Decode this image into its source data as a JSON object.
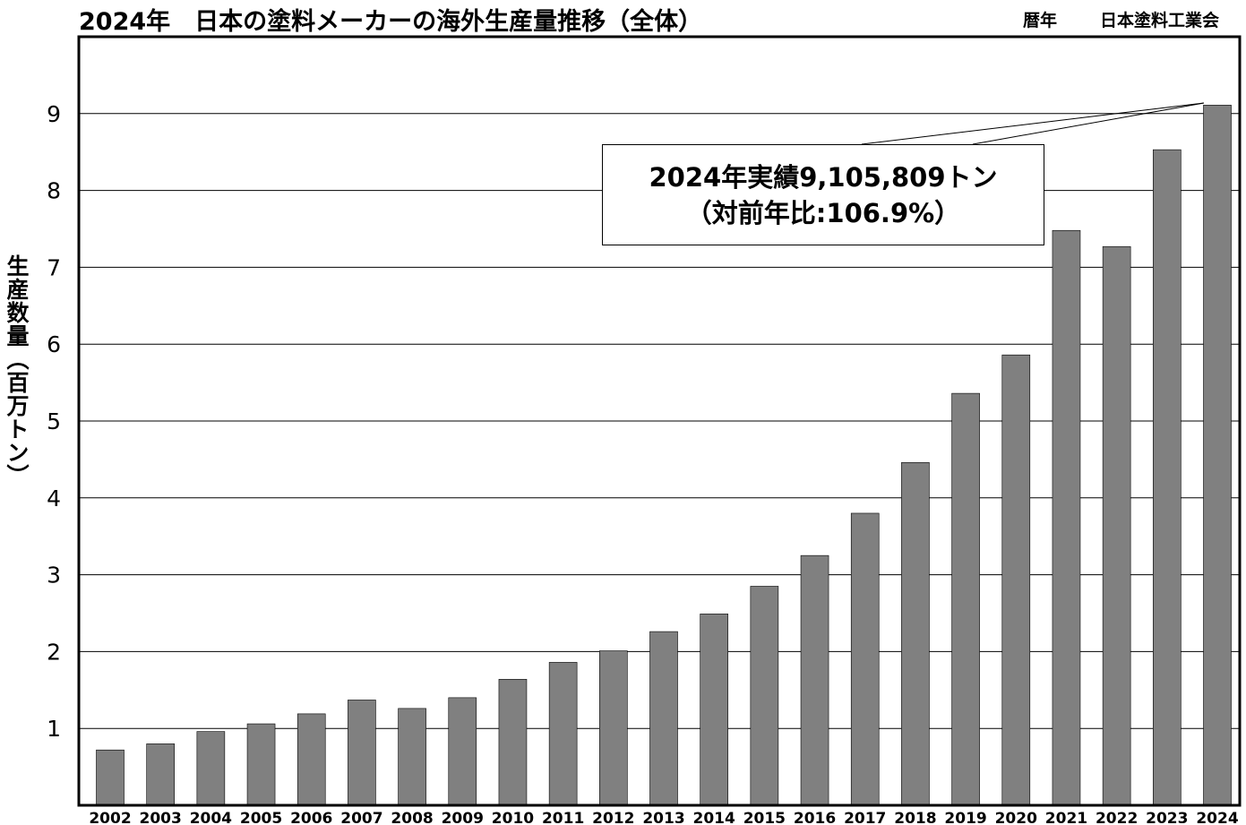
{
  "header": {
    "title": "2024年　日本の塗料メーカーの海外生産量推移（全体）",
    "basis": "暦年",
    "source": "日本塗料工業会"
  },
  "callout": {
    "line1": "2024年実績9,105,809トン",
    "line2": "（対前年比:106.9%）"
  },
  "chart_data": {
    "type": "bar",
    "title": "2024年　日本の塗料メーカーの海外生産量推移（全体）",
    "ylabel": "生産数量（百万トン）",
    "xlabel": "",
    "ylim": [
      0,
      10
    ],
    "yticks": [
      1,
      2,
      3,
      4,
      5,
      6,
      7,
      8,
      9
    ],
    "grid": true,
    "categories": [
      "2002",
      "2003",
      "2004",
      "2005",
      "2006",
      "2007",
      "2008",
      "2009",
      "2010",
      "2011",
      "2012",
      "2013",
      "2014",
      "2015",
      "2016",
      "2017",
      "2018",
      "2019",
      "2020",
      "2021",
      "2022",
      "2023",
      "2024"
    ],
    "values": [
      0.72,
      0.8,
      0.96,
      1.06,
      1.19,
      1.37,
      1.26,
      1.4,
      1.64,
      1.86,
      2.01,
      2.26,
      2.49,
      2.85,
      3.25,
      3.8,
      4.46,
      5.36,
      5.86,
      7.48,
      7.27,
      8.53,
      9.11
    ],
    "bar_color": "#808080"
  }
}
